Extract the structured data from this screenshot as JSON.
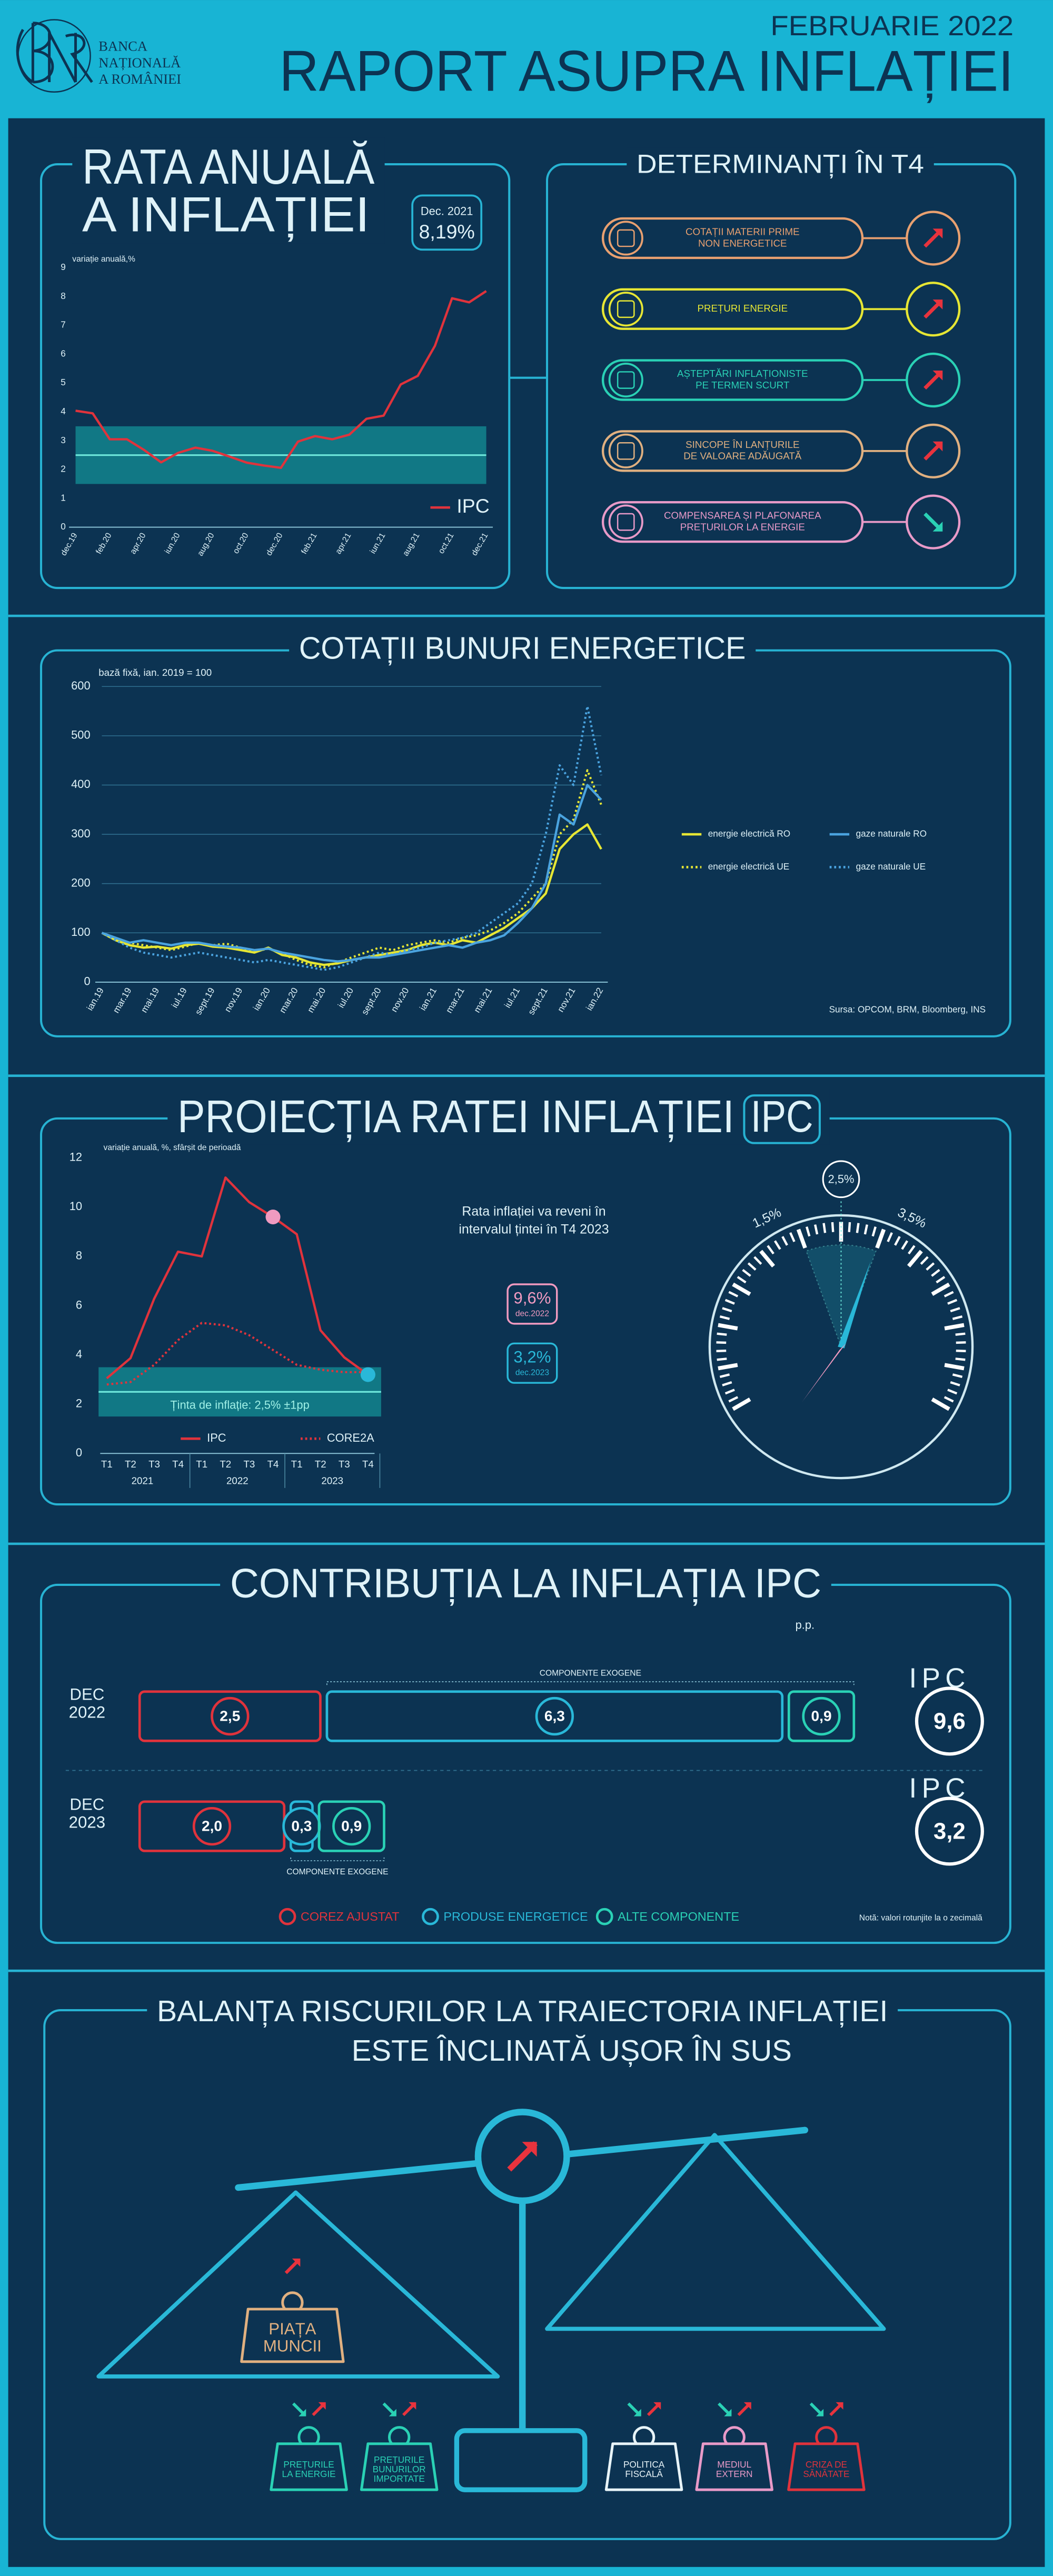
{
  "header": {
    "bank_lines": [
      "BANCA",
      "NAȚIONALĂ",
      "A ROMÂNIEI"
    ],
    "date": "FEBRUARIE 2022",
    "title": "RAPORT ASUPRA INFLAȚIEI"
  },
  "determinants": {
    "title": "DETERMINANȚI ÎN T4",
    "items": [
      {
        "label": [
          "COTAȚII MATERII PRIME",
          "NON ENERGETICE"
        ],
        "direction": "up",
        "color": "#e8a070"
      },
      {
        "label": [
          "PREȚURI ENERGIE"
        ],
        "direction": "up",
        "color": "#e6e634"
      },
      {
        "label": [
          "AȘTEPTĂRI INFLAȚIONISTE",
          "PE TERMEN SCURT"
        ],
        "direction": "up",
        "color": "#2ad1b5"
      },
      {
        "label": [
          "SINCOPE ÎN LANȚURILE",
          "DE VALOARE ADĂUGATĂ"
        ],
        "direction": "up",
        "color": "#e0b080"
      },
      {
        "label": [
          "COMPENSAREA ȘI PLAFONAREA",
          "PREȚURILOR LA ENERGIE"
        ],
        "direction": "down",
        "color": "#e89ac8"
      }
    ]
  },
  "gauge": {
    "center_label": "2,5%",
    "low_label": "1,5%",
    "high_label": "3,5%"
  },
  "risks": {
    "title_lines": [
      "BALANȚA RISCURILOR LA TRAIECTORIA INFLAȚIEI",
      "ESTE ÎNCLINATĂ UȘOR ÎN SUS"
    ],
    "upward": [
      {
        "label": [
          "PIAȚA",
          "MUNCII"
        ],
        "color": "#e0b080"
      }
    ],
    "weights": [
      {
        "label": [
          "PREȚURILE",
          "LA ENERGIE"
        ],
        "color": "#2ad1b5"
      },
      {
        "label": [
          "PREȚURILE",
          "BUNURILOR",
          "IMPORTATE"
        ],
        "color": "#2ad1b5"
      },
      {
        "label": [
          "POLITICA",
          "FISCALĂ"
        ],
        "color": "#e8f4f8"
      },
      {
        "label": [
          "MEDIUL",
          "EXTERN"
        ],
        "color": "#e89ac8"
      },
      {
        "label": [
          "CRIZA DE",
          "SĂNĂTATE"
        ],
        "color": "#e0333c"
      }
    ]
  },
  "chart_data": [
    {
      "type": "line",
      "title_lines": [
        "RATA ANUALĂ",
        "A INFLAȚIEI"
      ],
      "y_label": "variație anuală,%",
      "callout": {
        "date": "Dec. 2021",
        "label": "8,19%"
      },
      "categories": [
        "dec.19",
        null,
        "feb.20",
        null,
        "apr.20",
        null,
        "iun.20",
        null,
        "aug.20",
        null,
        "oct.20",
        null,
        "dec.20",
        null,
        "feb.21",
        null,
        "apr.21",
        null,
        "iun.21",
        null,
        "aug.21",
        null,
        "oct.21",
        null,
        "dec.21"
      ],
      "series": [
        {
          "name": "IPC",
          "color": "#e0333c",
          "values": [
            4.04,
            3.95,
            3.05,
            3.05,
            2.68,
            2.25,
            2.58,
            2.76,
            2.65,
            2.45,
            2.24,
            2.14,
            2.06,
            2.97,
            3.16,
            3.05,
            3.21,
            3.76,
            3.87,
            4.95,
            5.25,
            6.29,
            7.94,
            7.8,
            8.19
          ]
        }
      ],
      "target_band": [
        1.5,
        3.5
      ],
      "target": 2.5,
      "ylim": [
        0,
        9
      ],
      "yticks": [
        0,
        1,
        2,
        3,
        4,
        5,
        6,
        7,
        8,
        9
      ],
      "grid": false,
      "legend": "bottom-right"
    },
    {
      "type": "line",
      "title": "COTAȚII BUNURI ENERGETICE",
      "y_label": "bază fixă, ian. 2019 = 100",
      "source": "Sursa: OPCOM, BRM, Bloomberg, INS",
      "categories": [
        "ian.19",
        null,
        "mar.19",
        null,
        "mai.19",
        null,
        "iul.19",
        null,
        "sept.19",
        null,
        "nov.19",
        null,
        "ian.20",
        null,
        "mar.20",
        null,
        "mai.20",
        null,
        "iul.20",
        null,
        "sept.20",
        null,
        "nov.20",
        null,
        "ian.21",
        null,
        "mar.21",
        null,
        "mai.21",
        null,
        "iul.21",
        null,
        "sept.21",
        null,
        "nov.21",
        null,
        "ian.22"
      ],
      "series": [
        {
          "name": "energie electrică RO",
          "color": "#e6e634",
          "style": "solid",
          "values": [
            100,
            85,
            75,
            70,
            72,
            68,
            75,
            78,
            72,
            70,
            65,
            60,
            70,
            55,
            50,
            40,
            35,
            38,
            45,
            50,
            55,
            60,
            65,
            75,
            80,
            75,
            85,
            80,
            95,
            110,
            130,
            150,
            180,
            270,
            300,
            320,
            270
          ]
        },
        {
          "name": "energie electrică UE",
          "color": "#e6e634",
          "style": "dotted",
          "values": [
            100,
            90,
            80,
            75,
            70,
            65,
            72,
            80,
            75,
            78,
            70,
            62,
            68,
            58,
            45,
            35,
            30,
            40,
            50,
            60,
            70,
            65,
            75,
            80,
            85,
            80,
            90,
            95,
            105,
            120,
            140,
            170,
            200,
            300,
            330,
            430,
            360
          ]
        },
        {
          "name": "gaze naturale RO",
          "color": "#4aa3df",
          "style": "solid",
          "values": [
            100,
            90,
            80,
            85,
            80,
            75,
            80,
            80,
            75,
            72,
            70,
            65,
            68,
            60,
            55,
            50,
            45,
            42,
            45,
            50,
            50,
            55,
            60,
            65,
            70,
            75,
            70,
            80,
            85,
            95,
            120,
            150,
            200,
            340,
            320,
            400,
            370
          ]
        },
        {
          "name": "gaze naturale UE",
          "color": "#4aa3df",
          "style": "dotted",
          "values": [
            100,
            85,
            70,
            60,
            55,
            50,
            55,
            60,
            55,
            50,
            45,
            40,
            45,
            40,
            35,
            30,
            25,
            30,
            40,
            50,
            60,
            55,
            65,
            70,
            80,
            85,
            90,
            100,
            120,
            140,
            160,
            200,
            300,
            440,
            400,
            560,
            420
          ]
        }
      ],
      "ylim": [
        0,
        600
      ],
      "yticks": [
        0,
        100,
        200,
        300,
        400,
        500,
        600
      ],
      "grid": true,
      "legend": "right"
    },
    {
      "type": "line",
      "title": "PROIECȚIA RATEI INFLAȚIEI",
      "title_badge": "IPC",
      "y_label": "variație anuală, %, sfârșit de perioadă",
      "note_lines": [
        "Rata inflației va reveni în",
        "intervalul țintei în T4 2023"
      ],
      "categories": [
        "T1",
        "T2",
        "T3",
        "T4",
        "T1",
        "T2",
        "T3",
        "T4",
        "T1",
        "T2",
        "T3",
        "T4"
      ],
      "x_groups": [
        "2021",
        "2022",
        "2023"
      ],
      "series": [
        {
          "name": "IPC",
          "color": "#e0333c",
          "style": "solid",
          "values": [
            3.05,
            3.87,
            6.29,
            8.19,
            8.0,
            11.2,
            10.2,
            9.6,
            8.9,
            5.0,
            3.9,
            3.2
          ]
        },
        {
          "name": "CORE2A",
          "color": "#e0333c",
          "style": "dotted",
          "values": [
            2.8,
            2.9,
            3.6,
            4.6,
            5.3,
            5.2,
            4.8,
            4.2,
            3.6,
            3.4,
            3.3,
            3.3
          ]
        }
      ],
      "callouts": [
        {
          "value": 9.6,
          "label": "9,6%",
          "date": "dec.2022",
          "color": "#f09ac0"
        },
        {
          "value": 3.2,
          "label": "3,2%",
          "date": "dec.2023",
          "color": "#29b8d8"
        }
      ],
      "target_band": [
        1.5,
        3.5
      ],
      "target": 2.5,
      "band_label": "Ținta de inflație: 2,5% ±1pp",
      "ylim": [
        0,
        12
      ],
      "yticks": [
        0,
        2,
        4,
        6,
        8,
        10,
        12
      ],
      "grid": false,
      "legend": "bottom"
    },
    {
      "type": "stacked_bar_h",
      "title": "CONTRIBUȚIA LA INFLAȚIA IPC",
      "unit": "p.p.",
      "categories": [
        "DEC 2022",
        "DEC 2023"
      ],
      "series": [
        {
          "name": "COREZ AJUSTAT",
          "color": "#e0333c",
          "values": [
            2.5,
            2.0
          ],
          "value_labels": [
            "2,5",
            "2,0"
          ]
        },
        {
          "name": "PRODUSE ENERGETICE",
          "color": "#29b8d8",
          "values": [
            6.3,
            0.3
          ],
          "value_labels": [
            "6,3",
            "0,3"
          ]
        },
        {
          "name": "ALTE COMPONENTE",
          "color": "#2ad1b5",
          "values": [
            0.9,
            0.9
          ],
          "value_labels": [
            "0,9",
            "0,9"
          ]
        }
      ],
      "total_name": "IPC",
      "totals": [
        9.6,
        3.2
      ],
      "total_labels": [
        "9,6",
        "3,2"
      ],
      "annotations": [
        "COMPONENTE EXOGENE",
        "COMPONENTE EXOGENE"
      ],
      "note": "Notă: valori rotunjite la o zecimală"
    }
  ]
}
